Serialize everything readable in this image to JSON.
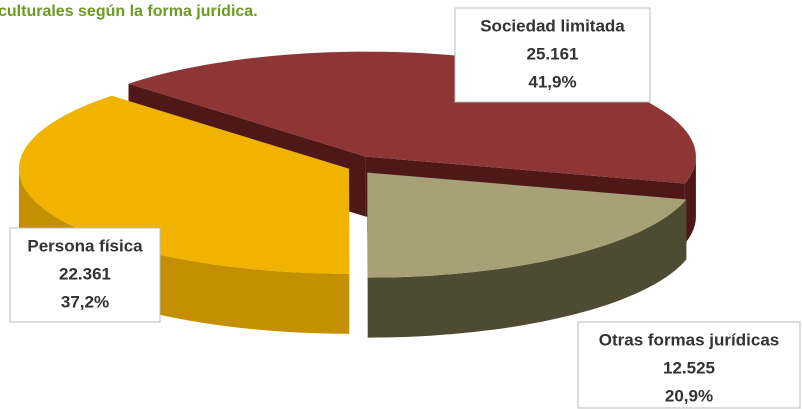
{
  "chart_data": {
    "type": "pie",
    "title": "culturales según la forma jurídica.",
    "categories": [
      "Sociedad limitada",
      "Otras formas jurídicas",
      "Persona física"
    ],
    "values": [
      25161,
      12525,
      22361
    ],
    "value_labels": [
      "25.161",
      "12.525",
      "22.361"
    ],
    "percentages": [
      41.9,
      20.9,
      37.2
    ],
    "percentage_labels": [
      "41,9%",
      "20,9%",
      "37,2%"
    ],
    "colors": [
      "#8e3535",
      "#a8a077",
      "#f0b400"
    ],
    "side_colors": [
      "#4e1818",
      "#4f4b33",
      "#c48f00"
    ]
  }
}
